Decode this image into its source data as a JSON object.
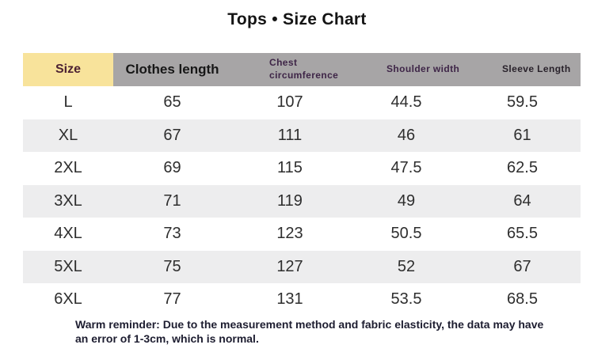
{
  "title": "Tops • Size Chart",
  "chart_data": {
    "type": "table",
    "title": "Tops • Size Chart",
    "columns": [
      "Size",
      "Clothes length",
      "Chest circumference",
      "Shoulder width",
      "Sleeve Length"
    ],
    "rows": [
      [
        "L",
        "65",
        "107",
        "44.5",
        "59.5"
      ],
      [
        "XL",
        "67",
        "111",
        "46",
        "61"
      ],
      [
        "2XL",
        "69",
        "115",
        "47.5",
        "62.5"
      ],
      [
        "3XL",
        "71",
        "119",
        "49",
        "64"
      ],
      [
        "4XL",
        "73",
        "123",
        "50.5",
        "65.5"
      ],
      [
        "5XL",
        "75",
        "127",
        "52",
        "67"
      ],
      [
        "6XL",
        "77",
        "131",
        "53.5",
        "68.5"
      ]
    ],
    "note": "Warm reminder: Due to the measurement method and fabric elasticity, the data may have an error of 1-3cm, which is normal.",
    "layout_hints": {
      "zebra_striped_rows": true,
      "grid": "off",
      "units": "cm"
    }
  },
  "colors": {
    "size_header_bg": "#f8e39b",
    "header_bg": "#a7a5a6",
    "row_stripe_bg": "#ededee",
    "size_header_text": "#4d2233",
    "subheader_text": "#3e2547",
    "value_text": "#2e2e2e",
    "note_text": "#1d1d30"
  }
}
